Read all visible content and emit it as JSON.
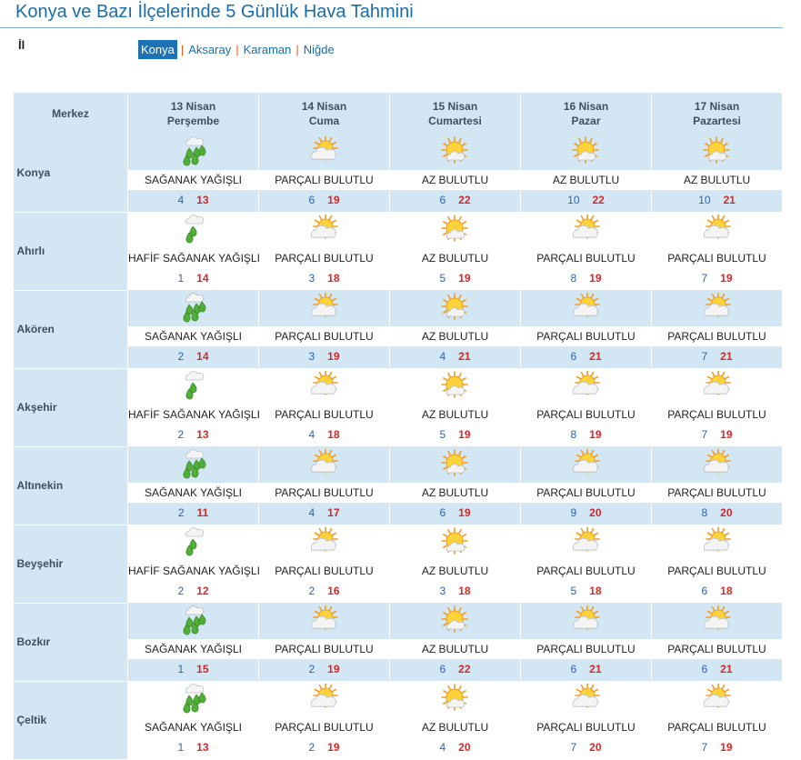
{
  "page_title": "Konya ve Bazı İlçelerinde 5 Günlük Hava Tahmini",
  "il_label": "İl",
  "provinces": [
    {
      "label": "Konya",
      "active": true
    },
    {
      "label": "Aksaray",
      "active": false
    },
    {
      "label": "Karaman",
      "active": false
    },
    {
      "label": "Niğde",
      "active": false
    }
  ],
  "table": {
    "corner_label": "Merkez",
    "days": [
      {
        "date": "13 Nisan",
        "weekday": "Perşembe"
      },
      {
        "date": "14 Nisan",
        "weekday": "Cuma"
      },
      {
        "date": "15 Nisan",
        "weekday": "Cumartesi"
      },
      {
        "date": "16 Nisan",
        "weekday": "Pazar"
      },
      {
        "date": "17 Nisan",
        "weekday": "Pazartesi"
      }
    ],
    "districts": [
      {
        "name": "Konya",
        "forecast": [
          {
            "icon": "heavy-shower-icon",
            "desc": "SAĞANAK YAĞIŞLI",
            "min": "4",
            "max": "13"
          },
          {
            "icon": "partly-cloudy-icon",
            "desc": "PARÇALI BULUTLU",
            "min": "6",
            "max": "19"
          },
          {
            "icon": "mostly-sunny-icon",
            "desc": "AZ BULUTLU",
            "min": "6",
            "max": "22"
          },
          {
            "icon": "mostly-sunny-icon",
            "desc": "AZ BULUTLU",
            "min": "10",
            "max": "22"
          },
          {
            "icon": "mostly-sunny-icon",
            "desc": "AZ BULUTLU",
            "min": "10",
            "max": "21"
          }
        ]
      },
      {
        "name": "Ahırlı",
        "forecast": [
          {
            "icon": "light-shower-icon",
            "desc": "HAFİF SAĞANAK YAĞIŞLI",
            "min": "1",
            "max": "14"
          },
          {
            "icon": "partly-cloudy-icon",
            "desc": "PARÇALI BULUTLU",
            "min": "3",
            "max": "18"
          },
          {
            "icon": "mostly-sunny-icon",
            "desc": "AZ BULUTLU",
            "min": "5",
            "max": "19"
          },
          {
            "icon": "partly-cloudy-icon",
            "desc": "PARÇALI BULUTLU",
            "min": "8",
            "max": "19"
          },
          {
            "icon": "partly-cloudy-icon",
            "desc": "PARÇALI BULUTLU",
            "min": "7",
            "max": "19"
          }
        ]
      },
      {
        "name": "Akören",
        "forecast": [
          {
            "icon": "heavy-shower-icon",
            "desc": "SAĞANAK YAĞIŞLI",
            "min": "2",
            "max": "14"
          },
          {
            "icon": "partly-cloudy-icon",
            "desc": "PARÇALI BULUTLU",
            "min": "3",
            "max": "19"
          },
          {
            "icon": "mostly-sunny-icon",
            "desc": "AZ BULUTLU",
            "min": "4",
            "max": "21"
          },
          {
            "icon": "partly-cloudy-icon",
            "desc": "PARÇALI BULUTLU",
            "min": "6",
            "max": "21"
          },
          {
            "icon": "partly-cloudy-icon",
            "desc": "PARÇALI BULUTLU",
            "min": "7",
            "max": "21"
          }
        ]
      },
      {
        "name": "Akşehir",
        "forecast": [
          {
            "icon": "light-shower-icon",
            "desc": "HAFİF SAĞANAK YAĞIŞLI",
            "min": "2",
            "max": "13"
          },
          {
            "icon": "partly-cloudy-icon",
            "desc": "PARÇALI BULUTLU",
            "min": "4",
            "max": "18"
          },
          {
            "icon": "mostly-sunny-icon",
            "desc": "AZ BULUTLU",
            "min": "5",
            "max": "19"
          },
          {
            "icon": "partly-cloudy-icon",
            "desc": "PARÇALI BULUTLU",
            "min": "8",
            "max": "19"
          },
          {
            "icon": "partly-cloudy-icon",
            "desc": "PARÇALI BULUTLU",
            "min": "7",
            "max": "19"
          }
        ]
      },
      {
        "name": "Altınekin",
        "forecast": [
          {
            "icon": "heavy-shower-icon",
            "desc": "SAĞANAK YAĞIŞLI",
            "min": "2",
            "max": "11"
          },
          {
            "icon": "partly-cloudy-icon",
            "desc": "PARÇALI BULUTLU",
            "min": "4",
            "max": "17"
          },
          {
            "icon": "mostly-sunny-icon",
            "desc": "AZ BULUTLU",
            "min": "6",
            "max": "19"
          },
          {
            "icon": "partly-cloudy-icon",
            "desc": "PARÇALI BULUTLU",
            "min": "9",
            "max": "20"
          },
          {
            "icon": "partly-cloudy-icon",
            "desc": "PARÇALI BULUTLU",
            "min": "8",
            "max": "20"
          }
        ]
      },
      {
        "name": "Beyşehir",
        "forecast": [
          {
            "icon": "light-shower-icon",
            "desc": "HAFİF SAĞANAK YAĞIŞLI",
            "min": "2",
            "max": "12"
          },
          {
            "icon": "partly-cloudy-icon",
            "desc": "PARÇALI BULUTLU",
            "min": "2",
            "max": "16"
          },
          {
            "icon": "mostly-sunny-icon",
            "desc": "AZ BULUTLU",
            "min": "3",
            "max": "18"
          },
          {
            "icon": "partly-cloudy-icon",
            "desc": "PARÇALI BULUTLU",
            "min": "5",
            "max": "18"
          },
          {
            "icon": "partly-cloudy-icon",
            "desc": "PARÇALI BULUTLU",
            "min": "6",
            "max": "18"
          }
        ]
      },
      {
        "name": "Bozkır",
        "forecast": [
          {
            "icon": "heavy-shower-icon",
            "desc": "SAĞANAK YAĞIŞLI",
            "min": "1",
            "max": "15"
          },
          {
            "icon": "partly-cloudy-icon",
            "desc": "PARÇALI BULUTLU",
            "min": "2",
            "max": "19"
          },
          {
            "icon": "mostly-sunny-icon",
            "desc": "AZ BULUTLU",
            "min": "6",
            "max": "22"
          },
          {
            "icon": "partly-cloudy-icon",
            "desc": "PARÇALI BULUTLU",
            "min": "6",
            "max": "21"
          },
          {
            "icon": "partly-cloudy-icon",
            "desc": "PARÇALI BULUTLU",
            "min": "6",
            "max": "21"
          }
        ]
      },
      {
        "name": "Çeltik",
        "forecast": [
          {
            "icon": "heavy-shower-icon",
            "desc": "SAĞANAK YAĞIŞLI",
            "min": "1",
            "max": "13"
          },
          {
            "icon": "partly-cloudy-icon",
            "desc": "PARÇALI BULUTLU",
            "min": "2",
            "max": "19"
          },
          {
            "icon": "mostly-sunny-icon",
            "desc": "AZ BULUTLU",
            "min": "4",
            "max": "20"
          },
          {
            "icon": "partly-cloudy-icon",
            "desc": "PARÇALI BULUTLU",
            "min": "7",
            "max": "20"
          },
          {
            "icon": "partly-cloudy-icon",
            "desc": "PARÇALI BULUTLU",
            "min": "7",
            "max": "19"
          }
        ]
      }
    ]
  },
  "colors": {
    "title": "#1a6dab",
    "header_bg": "#d3e6f3",
    "active_tab_bg": "#1b73b5",
    "separator": "#e45d18",
    "min_temp": "#2a64b0",
    "max_temp": "#cf2b2b"
  }
}
